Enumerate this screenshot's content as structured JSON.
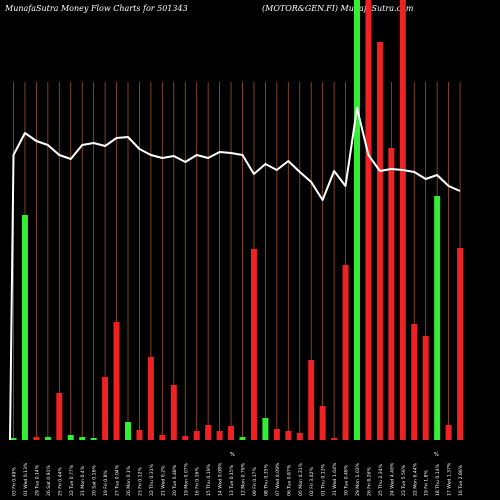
{
  "chart_data": {
    "type": "bar",
    "title_left": "MunafaSutra  Money Flow  Charts for 501343",
    "title_right": "(MOTOR&GEN.FI) MunafaSutra.com",
    "colors": {
      "background": "#000000",
      "up": "#33ee33",
      "down": "#ee2222",
      "grid": "#a0522d",
      "line": "#ffffff"
    },
    "categories": [
      "03 Fri 0.49%",
      "01 Wed 0.13%",
      "29 Tue 0.14%",
      "26 Sat 0.91%",
      "25 Fri 0.44%",
      "22 Tue 0.77%",
      "21 Mon 0.4%",
      "20 Sat 0.16%",
      "19 Fri 0.8%",
      "27 Tue 0.04%",
      "26 Mon 0.1%",
      "23 Fri 0.12%",
      "22 Thu 0.31%",
      "21 Wed 0.2%",
      "20 Tue 0.48%",
      "19 Mon 0.07%",
      "16 Fri 0.16%",
      "15 Thu 0.19%",
      "14 Wed 0.08%",
      "13 Tue 0.15%",
      "12 Mon 0.79%",
      "09 Fri 0.17%",
      "08 Thu 0.35%",
      "07 Wed 0.09%",
      "06 Tue 0.87%",
      "05 Mon 4.31%",
      "02 Fri 3.42%",
      "01 Thu 0.13%",
      "31 Wed 1.64%",
      "30 Tue 0.48%",
      "29 Mon 1.03%",
      "26 Fri 8.26%",
      "25 Thu 2.34%",
      "24 Wed 4.46%",
      "23 Tue 5.56%",
      "22 Mon 6.44%",
      "19 Fri 1.8%",
      "18 Thu 0.14%",
      "17 Wed 1.37%",
      "16 Tue 2.86%"
    ],
    "tick_marks": [
      "%",
      "%"
    ],
    "bars": [
      {
        "value": 2,
        "color": "up"
      },
      {
        "value": 225,
        "color": "up"
      },
      {
        "value": 3,
        "color": "down"
      },
      {
        "value": 3,
        "color": "up"
      },
      {
        "value": 47,
        "color": "down"
      },
      {
        "value": 5,
        "color": "up"
      },
      {
        "value": 3,
        "color": "up"
      },
      {
        "value": 2,
        "color": "up"
      },
      {
        "value": 63,
        "color": "down"
      },
      {
        "value": 118,
        "color": "down"
      },
      {
        "value": 18,
        "color": "up"
      },
      {
        "value": 10,
        "color": "down"
      },
      {
        "value": 83,
        "color": "down"
      },
      {
        "value": 5,
        "color": "down"
      },
      {
        "value": 55,
        "color": "down"
      },
      {
        "value": 4,
        "color": "down"
      },
      {
        "value": 9,
        "color": "down"
      },
      {
        "value": 15,
        "color": "down"
      },
      {
        "value": 9,
        "color": "down"
      },
      {
        "value": 14,
        "color": "down"
      },
      {
        "value": 3,
        "color": "up"
      },
      {
        "value": 191,
        "color": "down"
      },
      {
        "value": 22,
        "color": "up"
      },
      {
        "value": 11,
        "color": "down"
      },
      {
        "value": 9,
        "color": "down"
      },
      {
        "value": 7,
        "color": "down"
      },
      {
        "value": 80,
        "color": "down"
      },
      {
        "value": 34,
        "color": "down"
      },
      {
        "value": 2,
        "color": "down"
      },
      {
        "value": 175,
        "color": "down"
      },
      {
        "value": 440,
        "color": "up"
      },
      {
        "value": 440,
        "color": "down"
      },
      {
        "value": 398,
        "color": "down"
      },
      {
        "value": 292,
        "color": "down"
      },
      {
        "value": 440,
        "color": "down"
      },
      {
        "value": 116,
        "color": "down"
      },
      {
        "value": 104,
        "color": "down"
      },
      {
        "value": 244,
        "color": "up"
      },
      {
        "value": 15,
        "color": "down"
      },
      {
        "value": 192,
        "color": "down"
      }
    ],
    "line": [
      285,
      307,
      299,
      295,
      285,
      281,
      295,
      297,
      294,
      302,
      303,
      291,
      285,
      282,
      284,
      278,
      285,
      282,
      288,
      287,
      285,
      266,
      276,
      270,
      279,
      268,
      258,
      240,
      269,
      254,
      332,
      285,
      269,
      271,
      270,
      268,
      261,
      265,
      254,
      249
    ],
    "line_start": 0,
    "ylim": [
      0,
      440
    ]
  }
}
